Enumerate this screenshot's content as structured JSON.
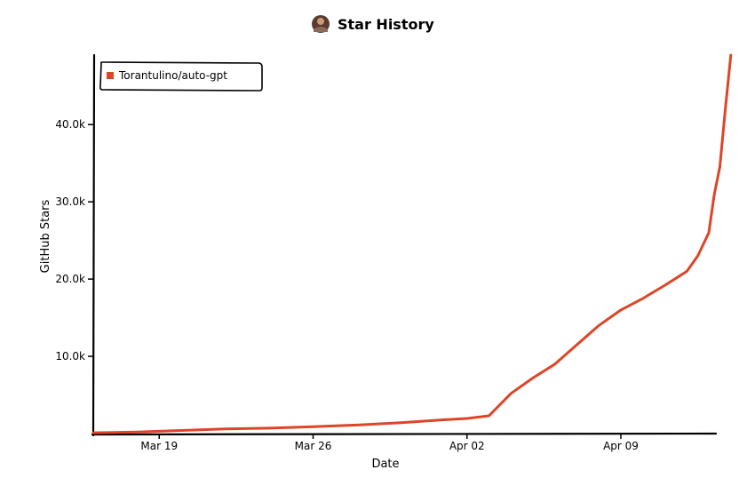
{
  "chart_data": {
    "type": "line",
    "title": "Star History",
    "xlabel": "Date",
    "ylabel": "GitHub Stars",
    "x_ticks": [
      "Mar 19",
      "Mar 26",
      "Apr 02",
      "Apr 09"
    ],
    "x_tick_dates": [
      "2023-03-19",
      "2023-03-26",
      "2023-04-02",
      "2023-04-09"
    ],
    "y_ticks": [
      "10.0k",
      "20.0k",
      "30.0k",
      "40.0k"
    ],
    "y_tick_values": [
      10000,
      20000,
      30000,
      40000
    ],
    "xlim": [
      "2023-03-16",
      "2023-04-13"
    ],
    "ylim": [
      0,
      49000
    ],
    "grid": false,
    "legend_position": "top-left",
    "series": [
      {
        "name": "Torantulino/auto-gpt",
        "color": "#dd4528",
        "points": [
          [
            "2023-03-16",
            100
          ],
          [
            "2023-03-18",
            200
          ],
          [
            "2023-03-20",
            400
          ],
          [
            "2023-03-22",
            600
          ],
          [
            "2023-03-24",
            700
          ],
          [
            "2023-03-26",
            900
          ],
          [
            "2023-03-28",
            1100
          ],
          [
            "2023-03-30",
            1400
          ],
          [
            "2023-04-01",
            1800
          ],
          [
            "2023-04-02",
            1950
          ],
          [
            "2023-04-03",
            2300
          ],
          [
            "2023-04-04",
            5200
          ],
          [
            "2023-04-05",
            7200
          ],
          [
            "2023-04-06",
            9000
          ],
          [
            "2023-04-07",
            11500
          ],
          [
            "2023-04-08",
            14000
          ],
          [
            "2023-04-09",
            16000
          ],
          [
            "2023-04-10",
            17500
          ],
          [
            "2023-04-11",
            19200
          ],
          [
            "2023-04-12",
            21000
          ],
          [
            "2023-04-12T12:00",
            23000
          ],
          [
            "2023-04-13",
            26000
          ],
          [
            "2023-04-13T06:00",
            31000
          ],
          [
            "2023-04-13T12:00",
            34500
          ],
          [
            "2023-04-13T18:00",
            42000
          ],
          [
            "2023-04-14",
            49000
          ]
        ]
      }
    ]
  }
}
